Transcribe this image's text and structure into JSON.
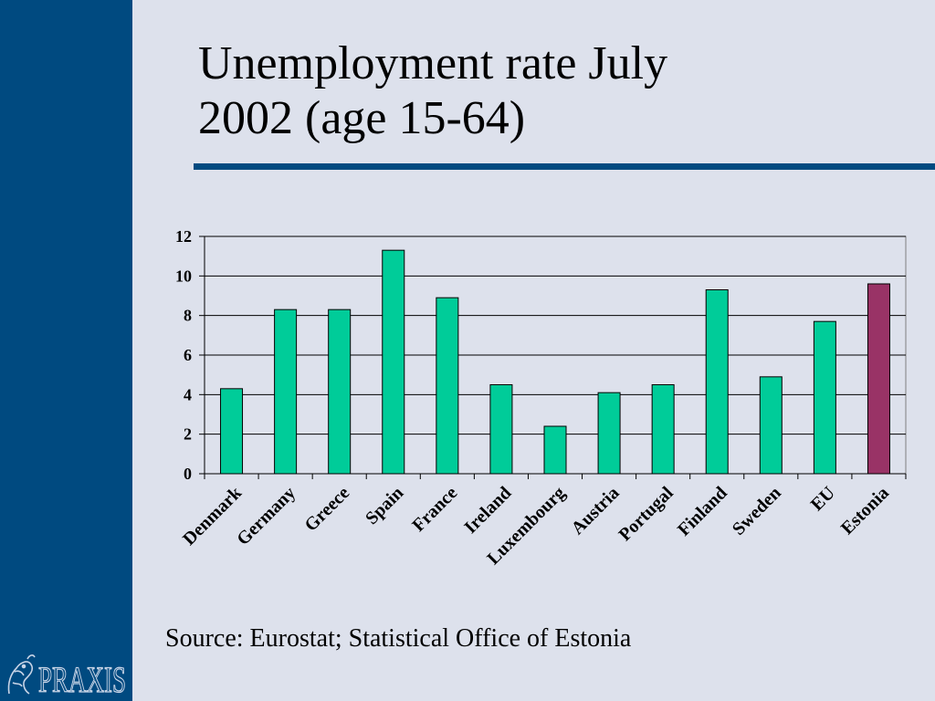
{
  "slide": {
    "title_line1": "Unemployment rate July",
    "title_line2": "2002 (age 15-64)",
    "source": "Source: Eurostat; Statistical Office of Estonia",
    "logo_text": "PRAXIS"
  },
  "colors": {
    "sidebar": "#004a80",
    "background": "#dde1ec",
    "bar_default": "#00cc99",
    "bar_highlight": "#993366",
    "plot_background": "#dde1ec"
  },
  "chart_data": {
    "type": "bar",
    "title": "",
    "xlabel": "",
    "ylabel": "",
    "ylim": [
      0,
      12
    ],
    "yticks": [
      0,
      2,
      4,
      6,
      8,
      10,
      12
    ],
    "grid": true,
    "legend": "none",
    "categories": [
      "Denmark",
      "Germany",
      "Greece",
      "Spain",
      "France",
      "Ireland",
      "Luxembourg",
      "Austria",
      "Portugal",
      "Finland",
      "Sweden",
      "EU",
      "Estonia"
    ],
    "values": [
      4.3,
      8.3,
      8.3,
      11.3,
      8.9,
      4.5,
      2.4,
      4.1,
      4.5,
      9.3,
      4.9,
      7.7,
      9.6
    ],
    "highlight_category": "Estonia"
  }
}
